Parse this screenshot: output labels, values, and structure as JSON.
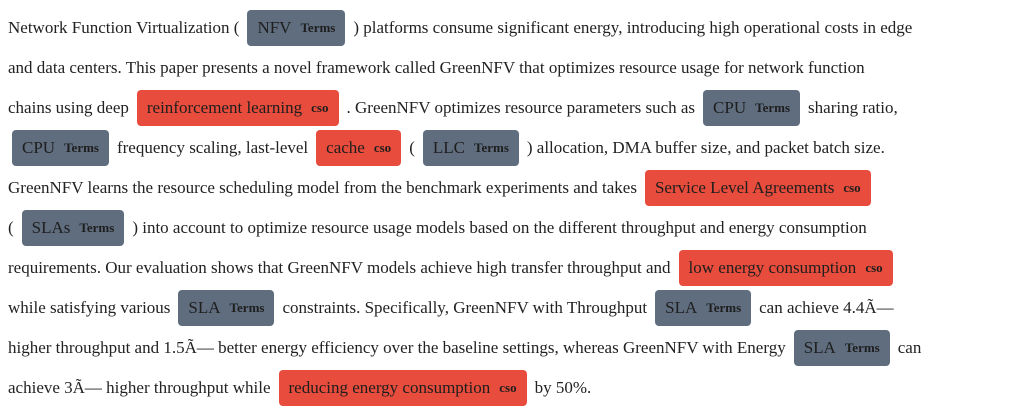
{
  "lines": [
    [
      {
        "text": "Network Function Virtualization ("
      },
      {
        "entity": "NFV",
        "label": "Terms"
      },
      {
        "text": ") platforms consume significant energy, introducing high operational costs in edge"
      }
    ],
    [
      {
        "text": "and data centers. This paper presents a novel framework called GreenNFV that optimizes resource usage for network function"
      }
    ],
    [
      {
        "text": "chains using deep"
      },
      {
        "entity": "reinforcement learning",
        "label": "cso"
      },
      {
        "text": ". GreenNFV optimizes resource parameters such as"
      },
      {
        "entity": "CPU",
        "label": "Terms"
      },
      {
        "text": "sharing ratio,"
      }
    ],
    [
      {
        "entity": "CPU",
        "label": "Terms"
      },
      {
        "text": "frequency scaling, last-level"
      },
      {
        "entity": "cache",
        "label": "cso"
      },
      {
        "text": "("
      },
      {
        "entity": "LLC",
        "label": "Terms"
      },
      {
        "text": ") allocation, DMA buffer size, and packet batch size."
      }
    ],
    [
      {
        "text": "GreenNFV learns the resource scheduling model from the benchmark experiments and takes"
      },
      {
        "entity": "Service Level Agreements",
        "label": "cso"
      }
    ],
    [
      {
        "text": "("
      },
      {
        "entity": "SLAs",
        "label": "Terms"
      },
      {
        "text": ") into account to optimize resource usage models based on the different throughput and energy consumption"
      }
    ],
    [
      {
        "text": "requirements. Our evaluation shows that GreenNFV models achieve high transfer throughput and"
      },
      {
        "entity": "low energy consumption",
        "label": "cso"
      }
    ],
    [
      {
        "text": "while satisfying various"
      },
      {
        "entity": "SLA",
        "label": "Terms"
      },
      {
        "text": "constraints. Specifically, GreenNFV with Throughput"
      },
      {
        "entity": "SLA",
        "label": "Terms"
      },
      {
        "text": "can achieve 4.4Ã—"
      }
    ],
    [
      {
        "text": "higher throughput and 1.5Ã— better energy efficiency over the baseline settings, whereas GreenNFV with Energy"
      },
      {
        "entity": "SLA",
        "label": "Terms"
      },
      {
        "text": "can"
      }
    ],
    [
      {
        "text": "achieve 3Ã— higher throughput while"
      },
      {
        "entity": "reducing energy consumption",
        "label": "cso"
      },
      {
        "text": "by 50%."
      }
    ]
  ]
}
